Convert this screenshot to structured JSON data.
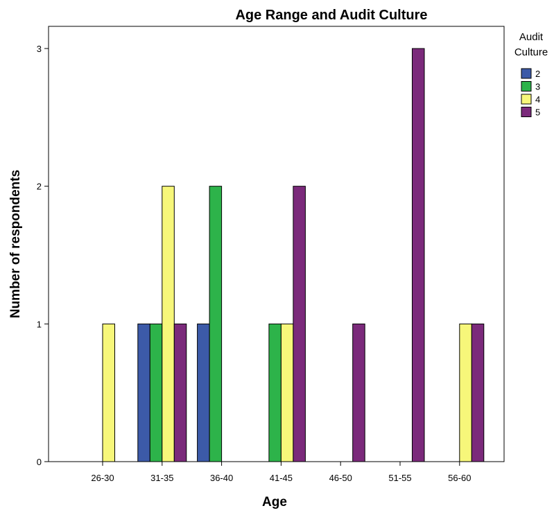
{
  "chart_data": {
    "type": "bar",
    "title": "Age Range  and Audit Culture",
    "xlabel": "Age",
    "ylabel": "Number of respondents",
    "categories": [
      "26-30",
      "31-35",
      "36-40",
      "41-45",
      "46-50",
      "51-55",
      "56-60"
    ],
    "yticks": [
      "0",
      "1",
      "2",
      "3"
    ],
    "ylim": [
      0,
      3
    ],
    "grid": false,
    "legend": {
      "title_line1": "Audit",
      "title_line2": "Culture",
      "placement": "right"
    },
    "series": [
      {
        "name": "2",
        "color": "#3c5aa8",
        "values": [
          0,
          1,
          1,
          0,
          0,
          0,
          0
        ]
      },
      {
        "name": "3",
        "color": "#2db34a",
        "values": [
          0,
          1,
          2,
          1,
          0,
          0,
          0
        ]
      },
      {
        "name": "4",
        "color": "#f7f77a",
        "values": [
          1,
          2,
          0,
          1,
          0,
          0,
          1
        ]
      },
      {
        "name": "5",
        "color": "#7b2a7b",
        "values": [
          0,
          1,
          0,
          2,
          1,
          3,
          1
        ]
      }
    ]
  }
}
